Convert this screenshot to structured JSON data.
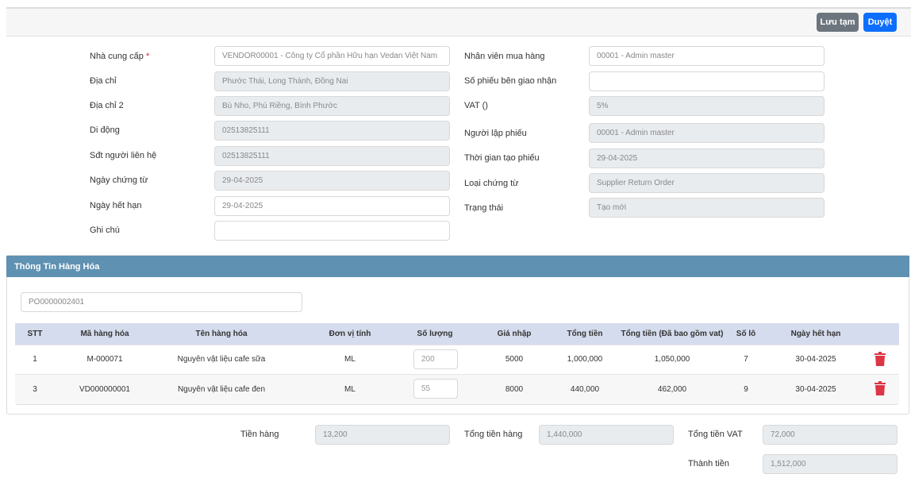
{
  "toolbar": {
    "save_draft_label": "Lưu tạm",
    "approve_label": "Duyệt"
  },
  "form_left": [
    {
      "label": "Nhà cung cấp",
      "required": "*",
      "value": "VENDOR00001 - Công ty Cổ phần Hữu hạn Vedan Việt Nam",
      "disabled": false
    },
    {
      "label": "Địa chỉ",
      "value": "Phước Thái, Long Thành, Đồng Nai",
      "disabled": true
    },
    {
      "label": "Địa chỉ 2",
      "value": "Bù Nho, Phú Riềng, Bình Phước",
      "disabled": true
    },
    {
      "label": "Di động",
      "value": "02513825111",
      "disabled": true
    },
    {
      "label": "Sđt người liên hệ",
      "value": "02513825111",
      "disabled": true
    },
    {
      "label": "Ngày chứng từ",
      "value": "29-04-2025",
      "disabled": true
    },
    {
      "label": "Ngày hết hạn",
      "value": "29-04-2025",
      "disabled": false
    },
    {
      "label": "Ghi chú",
      "value": "",
      "disabled": false
    }
  ],
  "form_right": [
    {
      "label": "Nhân viên mua hàng",
      "value": "00001 - Admin master",
      "disabled": false
    },
    {
      "label": "Số phiếu bên giao nhận",
      "value": "",
      "disabled": false
    },
    {
      "label": "VAT ()",
      "value": "5%",
      "disabled": true
    },
    {
      "label": "Người lập phiếu",
      "value": "00001 - Admin master",
      "disabled": true
    },
    {
      "label": "Thời gian tạo phiếu",
      "value": "29-04-2025",
      "disabled": true
    },
    {
      "label": "Loại chứng từ",
      "value": "Supplier Return Order",
      "disabled": true
    },
    {
      "label": "Trạng thái",
      "value": "Tạo mới",
      "disabled": true
    }
  ],
  "goods": {
    "title": "Thông Tin Hàng Hóa",
    "po_value": "PO0000002401",
    "columns": [
      "STT",
      "Mã hàng hóa",
      "Tên hàng hóa",
      "Đơn vị tính",
      "Số lượng",
      "Giá nhập",
      "Tổng tiền",
      "Tổng tiền (Đã bao gồm vat)",
      "Số lô",
      "Ngày hết hạn"
    ],
    "rows": [
      {
        "stt": "1",
        "code": "M-000071",
        "name": "Nguyên vật liệu cafe sữa",
        "unit": "ML",
        "qty": "200",
        "price": "5000",
        "total": "1,000,000",
        "total_vat": "1,050,000",
        "lot": "7",
        "expiry": "30-04-2025"
      },
      {
        "stt": "3",
        "code": "VD000000001",
        "name": "Nguyên vật liệu cafe đen",
        "unit": "ML",
        "qty": "55",
        "price": "8000",
        "total": "440,000",
        "total_vat": "462,000",
        "lot": "9",
        "expiry": "30-04-2025"
      }
    ]
  },
  "summary": {
    "goods_amount_label": "Tiền hàng",
    "goods_amount": "13,200",
    "total_goods_label": "Tổng tiền hàng",
    "total_goods": "1,440,000",
    "total_vat_label": "Tổng tiền VAT",
    "total_vat": "72,000",
    "grand_total_label": "Thành tiền",
    "grand_total": "1,512,000"
  },
  "colors": {
    "primary": "#0d6efd",
    "secondary": "#6c757d",
    "section": "#5f91b2",
    "danger": "#dc3545"
  }
}
